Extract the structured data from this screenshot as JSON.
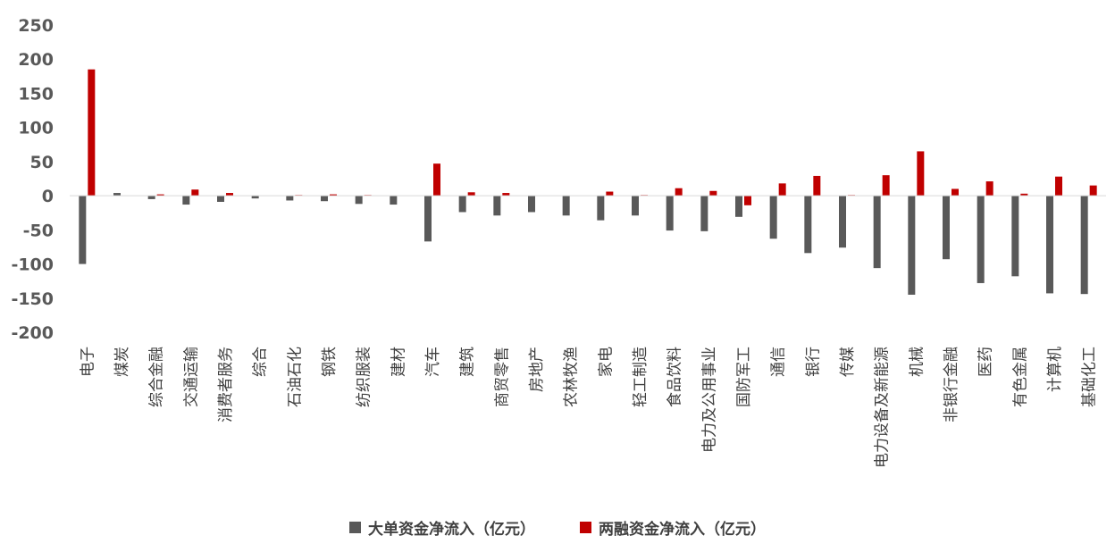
{
  "chart_data": {
    "type": "bar",
    "categories": [
      "电子",
      "煤炭",
      "综合金融",
      "交通运输",
      "消费者服务",
      "综合",
      "石油石化",
      "钢铁",
      "纺织服装",
      "建材",
      "汽车",
      "建筑",
      "商贸零售",
      "房地产",
      "农林牧渔",
      "家电",
      "轻工制造",
      "食品饮料",
      "电力及公用事业",
      "国防军工",
      "通信",
      "银行",
      "传媒",
      "电力设备及新能源",
      "机械",
      "非银行金融",
      "医药",
      "有色金属",
      "计算机",
      "基础化工"
    ],
    "series": [
      {
        "name": "大单资金净流入（亿元）",
        "color": "#595959",
        "values": [
          -100,
          4,
          -5,
          -13,
          -9,
          -4,
          -7,
          -8,
          -12,
          -13,
          -67,
          -24,
          -29,
          -24,
          -29,
          -36,
          -29,
          -51,
          -52,
          -31,
          -63,
          -84,
          -76,
          -106,
          -145,
          -93,
          -128,
          -118,
          -143,
          -144
        ]
      },
      {
        "name": "两融资金净流入（亿元）",
        "color": "#c00000",
        "values": [
          185,
          0,
          2,
          9,
          4,
          0,
          1,
          2,
          1,
          0,
          47,
          5,
          4,
          0,
          0,
          6,
          1,
          11,
          7,
          -14,
          18,
          29,
          1,
          30,
          65,
          10,
          21,
          3,
          28,
          15
        ]
      }
    ],
    "yticks": [
      "250",
      "200",
      "150",
      "100",
      "50",
      "0",
      "-50",
      "-100",
      "-150",
      "-200"
    ],
    "ylim": [
      -200,
      250
    ],
    "legend_position": "bottom",
    "grid": false
  }
}
